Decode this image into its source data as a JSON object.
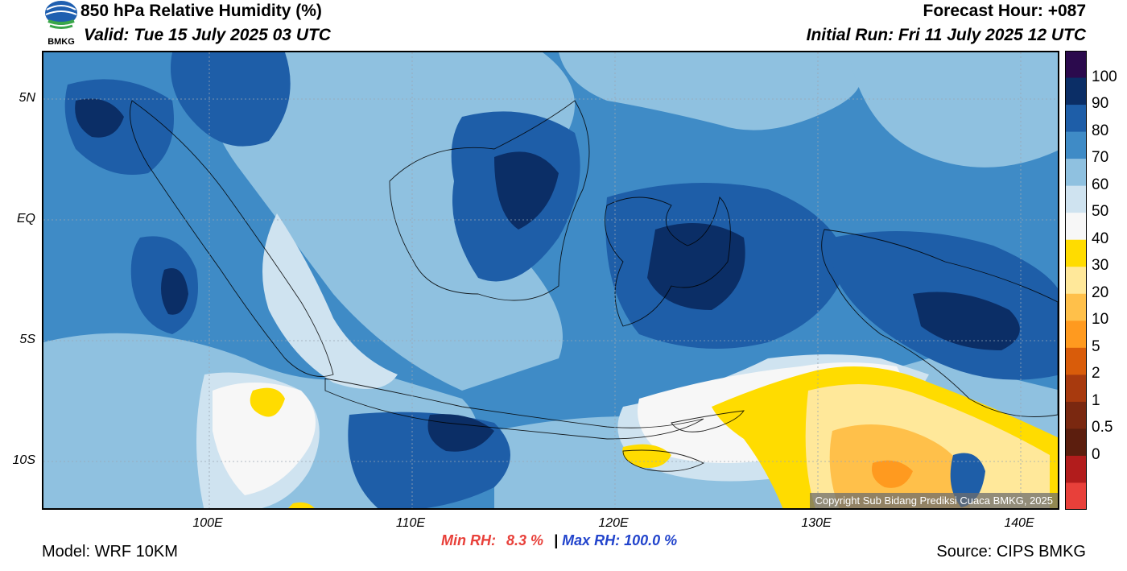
{
  "header": {
    "title": "850 hPa Relative Humidity (%)",
    "valid": "Valid: Tue 15 July 2025 03 UTC",
    "forecast_hour": "Forecast Hour: +087",
    "initial_run": "Initial Run: Fri 11 July 2025 12 UTC",
    "logo_text": "BMKG"
  },
  "axes": {
    "lat_labels": [
      "5N",
      "EQ",
      "5S",
      "10S"
    ],
    "lon_labels": [
      "100E",
      "110E",
      "120E",
      "130E",
      "140E"
    ]
  },
  "colorbar": {
    "labels": [
      "100",
      "90",
      "80",
      "70",
      "60",
      "50",
      "40",
      "30",
      "20",
      "10",
      "5",
      "2",
      "1",
      "0.5",
      "0"
    ],
    "colors": [
      "#2b0a4d",
      "#0b2e66",
      "#1e5ea8",
      "#3f8bc6",
      "#8fc1e0",
      "#cfe3f0",
      "#f7f7f7",
      "#ffdc00",
      "#ffe89a",
      "#ffc04a",
      "#ff9a1f",
      "#d95c0a",
      "#a83a0e",
      "#7a2810",
      "#5c1e0e",
      "#b21c1c",
      "#e8403a"
    ]
  },
  "copyright": "Copyright Sub Bidang Prediksi Cuaca BMKG, 2025",
  "stats": {
    "min_label": "Min RH:",
    "min_value": "8.3 %",
    "separator": "|",
    "max_label": "Max RH:",
    "max_value": "100.0 %"
  },
  "footer": {
    "model": "Model: WRF 10KM",
    "source": "Source: CIPS BMKG"
  }
}
